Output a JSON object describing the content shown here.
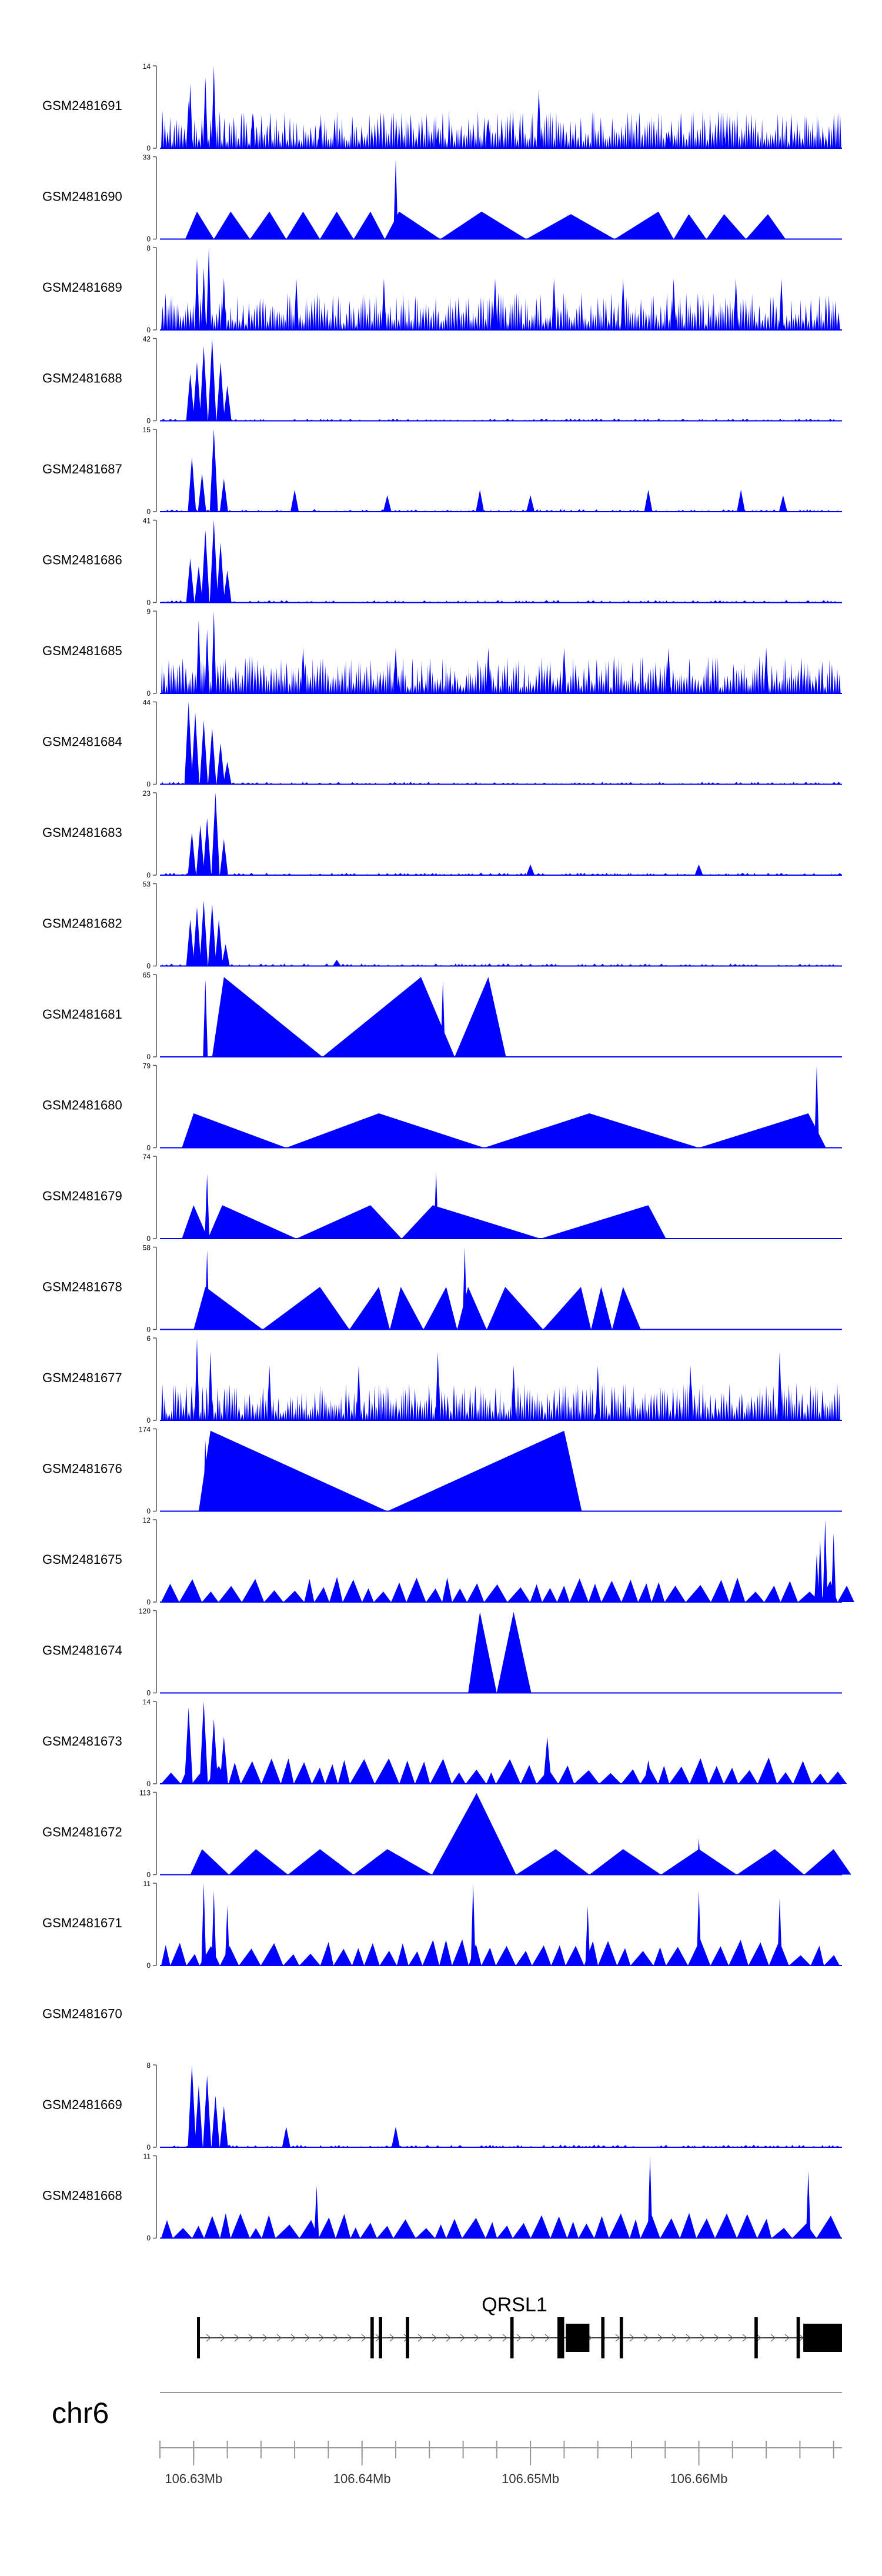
{
  "chart_data": {
    "type": "area",
    "title": "",
    "chromosome": "chr6",
    "x_unit": "Mb",
    "xlim": [
      106.628,
      106.6685
    ],
    "x_tick_labels": [
      {
        "value": 106.63,
        "label": "106.63Mb"
      },
      {
        "value": 106.64,
        "label": "106.64Mb"
      },
      {
        "value": 106.65,
        "label": "106.65Mb"
      },
      {
        "value": 106.66,
        "label": "106.66Mb"
      }
    ],
    "gene": {
      "name": "QRSL1",
      "strand": "+",
      "start": 106.6302,
      "end": 106.6685,
      "exons": [
        {
          "start": 106.6302,
          "end": 106.6303,
          "thick": false
        },
        {
          "start": 106.6405,
          "end": 106.6407,
          "thick": false
        },
        {
          "start": 106.641,
          "end": 106.6412,
          "thick": false
        },
        {
          "start": 106.6426,
          "end": 106.6428,
          "thick": false
        },
        {
          "start": 106.6488,
          "end": 106.649,
          "thick": false
        },
        {
          "start": 106.6516,
          "end": 106.652,
          "thick": false
        },
        {
          "start": 106.6521,
          "end": 106.6535,
          "thick": true
        },
        {
          "start": 106.6542,
          "end": 106.6544,
          "thick": false
        },
        {
          "start": 106.6553,
          "end": 106.6555,
          "thick": false
        },
        {
          "start": 106.6633,
          "end": 106.6635,
          "thick": false
        },
        {
          "start": 106.6658,
          "end": 106.666,
          "thick": false
        },
        {
          "start": 106.6662,
          "end": 106.6685,
          "thick": true
        }
      ]
    },
    "series": [
      {
        "name": "GSM2481691",
        "ymax": 14,
        "pattern": "dense",
        "spikes": [
          [
            106.6297,
            8
          ],
          [
            106.6307,
            12
          ],
          [
            106.6312,
            14
          ],
          [
            106.6298,
            11
          ],
          [
            106.6335,
            6
          ],
          [
            106.6375,
            4
          ],
          [
            106.6475,
            5
          ],
          [
            106.6505,
            10
          ],
          [
            106.6445,
            3
          ],
          [
            106.6582,
            3
          ],
          [
            106.6615,
            2
          ]
        ]
      },
      {
        "name": "GSM2481690",
        "ymax": 33,
        "pattern": "tent",
        "tent_peaks": [
          [
            106.6302,
            11
          ],
          [
            106.6322,
            11
          ],
          [
            106.6345,
            11
          ],
          [
            106.6365,
            11
          ],
          [
            106.6385,
            11
          ],
          [
            106.6405,
            11
          ],
          [
            106.6422,
            11
          ],
          [
            106.6471,
            11
          ],
          [
            106.6524,
            10
          ],
          [
            106.6576,
            11
          ],
          [
            106.6594,
            10
          ],
          [
            106.6615,
            10
          ],
          [
            106.6641,
            10
          ]
        ],
        "spikes": [
          [
            106.642,
            32
          ],
          [
            106.6522,
            10
          ]
        ]
      },
      {
        "name": "GSM2481689",
        "ymax": 8,
        "pattern": "dense",
        "spikes": [
          [
            106.6302,
            7
          ],
          [
            106.6309,
            8
          ],
          [
            106.6306,
            6
          ],
          [
            106.6318,
            5
          ],
          [
            106.6361,
            5
          ],
          [
            106.6413,
            5
          ],
          [
            106.6479,
            5
          ],
          [
            106.6514,
            5
          ],
          [
            106.6555,
            5
          ],
          [
            106.6585,
            5
          ],
          [
            106.6622,
            5
          ],
          [
            106.6649,
            5
          ]
        ]
      },
      {
        "name": "GSM2481688",
        "ymax": 42,
        "pattern": "cluster",
        "spikes": [
          [
            106.6298,
            24
          ],
          [
            106.6302,
            30
          ],
          [
            106.6306,
            38
          ],
          [
            106.6311,
            42
          ],
          [
            106.6316,
            30
          ],
          [
            106.632,
            18
          ]
        ]
      },
      {
        "name": "GSM2481687",
        "ymax": 15,
        "pattern": "cluster",
        "spikes": [
          [
            106.6299,
            10
          ],
          [
            106.6305,
            7
          ],
          [
            106.6312,
            15
          ],
          [
            106.6318,
            6
          ],
          [
            106.636,
            4
          ],
          [
            106.6415,
            3
          ],
          [
            106.647,
            4
          ],
          [
            106.65,
            3
          ],
          [
            106.657,
            4
          ],
          [
            106.6625,
            4
          ],
          [
            106.665,
            3
          ]
        ]
      },
      {
        "name": "GSM2481686",
        "ymax": 41,
        "pattern": "cluster",
        "spikes": [
          [
            106.6298,
            22
          ],
          [
            106.6303,
            18
          ],
          [
            106.6307,
            36
          ],
          [
            106.6312,
            41
          ],
          [
            106.6316,
            30
          ],
          [
            106.632,
            16
          ]
        ]
      },
      {
        "name": "GSM2481685",
        "ymax": 9,
        "pattern": "dense",
        "spikes": [
          [
            106.6303,
            8
          ],
          [
            106.6312,
            9
          ],
          [
            106.6308,
            7
          ],
          [
            106.6365,
            5
          ],
          [
            106.642,
            5
          ],
          [
            106.6475,
            5
          ],
          [
            106.652,
            5
          ],
          [
            106.6582,
            5
          ],
          [
            106.664,
            5
          ]
        ]
      },
      {
        "name": "GSM2481684",
        "ymax": 44,
        "pattern": "cluster",
        "spikes": [
          [
            106.6297,
            44
          ],
          [
            106.6301,
            38
          ],
          [
            106.6306,
            34
          ],
          [
            106.6311,
            30
          ],
          [
            106.6316,
            22
          ],
          [
            106.632,
            12
          ]
        ]
      },
      {
        "name": "GSM2481683",
        "ymax": 23,
        "pattern": "cluster",
        "spikes": [
          [
            106.6299,
            12
          ],
          [
            106.6304,
            14
          ],
          [
            106.6308,
            16
          ],
          [
            106.6313,
            23
          ],
          [
            106.6318,
            10
          ],
          [
            106.65,
            3
          ],
          [
            106.66,
            3
          ]
        ]
      },
      {
        "name": "GSM2481682",
        "ymax": 53,
        "pattern": "cluster",
        "spikes": [
          [
            106.6298,
            30
          ],
          [
            106.6302,
            38
          ],
          [
            106.6306,
            42
          ],
          [
            106.6311,
            40
          ],
          [
            106.6315,
            30
          ],
          [
            106.6319,
            14
          ],
          [
            106.6385,
            4
          ]
        ]
      },
      {
        "name": "GSM2481681",
        "ymax": 65,
        "pattern": "tent",
        "tent_peaks": [
          [
            106.6318,
            63
          ],
          [
            106.6435,
            63
          ],
          [
            106.6475,
            63
          ]
        ],
        "spikes": [
          [
            106.6307,
            61
          ],
          [
            106.6448,
            60
          ]
        ]
      },
      {
        "name": "GSM2481680",
        "ymax": 79,
        "pattern": "tent",
        "tent_peaks": [
          [
            106.63,
            33
          ],
          [
            106.641,
            33
          ],
          [
            106.6535,
            33
          ],
          [
            106.6665,
            33
          ]
        ],
        "spikes": [
          [
            106.667,
            79
          ]
        ]
      },
      {
        "name": "GSM2481679",
        "ymax": 74,
        "pattern": "tent",
        "tent_peaks": [
          [
            106.63,
            30
          ],
          [
            106.6317,
            30
          ],
          [
            106.6405,
            30
          ],
          [
            106.6442,
            30
          ],
          [
            106.657,
            30
          ]
        ],
        "spikes": [
          [
            106.6308,
            58
          ],
          [
            106.6444,
            60
          ]
        ]
      },
      {
        "name": "GSM2481678",
        "ymax": 58,
        "pattern": "tent",
        "tent_peaks": [
          [
            106.6307,
            30
          ],
          [
            106.6375,
            30
          ],
          [
            106.641,
            30
          ],
          [
            106.6423,
            30
          ],
          [
            106.645,
            30
          ],
          [
            106.6463,
            30
          ],
          [
            106.6485,
            30
          ],
          [
            106.653,
            30
          ],
          [
            106.6542,
            30
          ],
          [
            106.6555,
            30
          ]
        ],
        "spikes": [
          [
            106.6308,
            56
          ],
          [
            106.6461,
            58
          ]
        ]
      },
      {
        "name": "GSM2481677",
        "ymax": 6,
        "pattern": "dense",
        "spikes": [
          [
            106.6302,
            6
          ],
          [
            106.631,
            5
          ],
          [
            106.6345,
            4
          ],
          [
            106.6398,
            4
          ],
          [
            106.6445,
            5
          ],
          [
            106.649,
            4
          ],
          [
            106.654,
            4
          ],
          [
            106.6595,
            4
          ],
          [
            106.6648,
            5
          ]
        ]
      },
      {
        "name": "GSM2481676",
        "ymax": 174,
        "pattern": "tent",
        "tent_peaks": [
          [
            106.631,
            170
          ],
          [
            106.652,
            170
          ]
        ],
        "spikes": [
          [
            106.6307,
            150
          ]
        ]
      },
      {
        "name": "GSM2481675",
        "ymax": 12,
        "pattern": "tent_small",
        "spikes": [
          [
            106.6675,
            12
          ],
          [
            106.668,
            10
          ],
          [
            106.667,
            7
          ],
          [
            106.6672,
            9
          ]
        ]
      },
      {
        "name": "GSM2481674",
        "ymax": 120,
        "pattern": "tent",
        "tent_peaks": [
          [
            106.647,
            118
          ],
          [
            106.649,
            118
          ]
        ],
        "spikes": []
      },
      {
        "name": "GSM2481673",
        "ymax": 14,
        "pattern": "cluster_tent",
        "spikes": [
          [
            106.6297,
            13
          ],
          [
            106.6306,
            14
          ],
          [
            106.6312,
            11
          ],
          [
            106.6318,
            8
          ],
          [
            106.651,
            8
          ],
          [
            106.657,
            4
          ]
        ]
      },
      {
        "name": "GSM2481672",
        "ymax": 113,
        "pattern": "tent",
        "tent_peaks": [
          [
            106.6305,
            35
          ],
          [
            106.6337,
            35
          ],
          [
            106.6375,
            35
          ],
          [
            106.6415,
            35
          ],
          [
            106.6468,
            112
          ],
          [
            106.6515,
            35
          ],
          [
            106.6555,
            35
          ],
          [
            106.66,
            35
          ],
          [
            106.6645,
            35
          ],
          [
            106.668,
            35
          ]
        ],
        "spikes": [
          [
            106.66,
            50
          ]
        ]
      },
      {
        "name": "GSM2481671",
        "ymax": 11,
        "pattern": "tent_small",
        "spikes": [
          [
            106.6306,
            11
          ],
          [
            106.6312,
            10
          ],
          [
            106.632,
            8
          ],
          [
            106.6466,
            11
          ],
          [
            106.6534,
            8
          ],
          [
            106.66,
            10
          ],
          [
            106.6648,
            9
          ]
        ]
      },
      {
        "name": "GSM2481670",
        "ymax": null,
        "pattern": "empty",
        "spikes": []
      },
      {
        "name": "GSM2481669",
        "ymax": 8,
        "pattern": "cluster",
        "spikes": [
          [
            106.6299,
            8
          ],
          [
            106.6303,
            6
          ],
          [
            106.6308,
            7
          ],
          [
            106.6313,
            5
          ],
          [
            106.6318,
            4
          ],
          [
            106.6355,
            2
          ],
          [
            106.642,
            2
          ]
        ]
      },
      {
        "name": "GSM2481668",
        "ymax": 11,
        "pattern": "tent_small",
        "spikes": [
          [
            106.6373,
            7
          ],
          [
            106.6571,
            11
          ],
          [
            106.6665,
            9
          ]
        ]
      }
    ]
  }
}
